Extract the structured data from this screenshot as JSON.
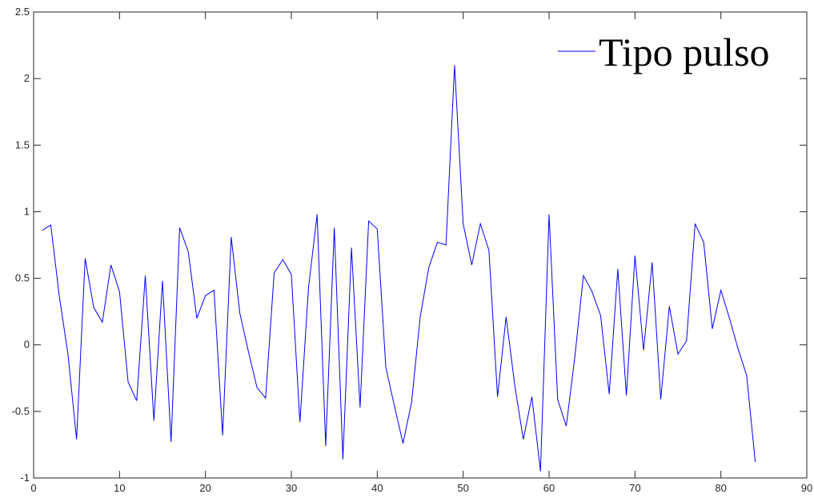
{
  "chart_data": {
    "type": "line",
    "title": "",
    "xlabel": "",
    "ylabel": "",
    "xlim": [
      0,
      90
    ],
    "ylim": [
      -1,
      2.5
    ],
    "xticks": [
      0,
      10,
      20,
      30,
      40,
      50,
      60,
      70,
      80,
      90
    ],
    "yticks": [
      -1,
      -0.5,
      0,
      0.5,
      1,
      1.5,
      2,
      2.5
    ],
    "xtick_labels": [
      "0",
      "10",
      "20",
      "30",
      "40",
      "50",
      "60",
      "70",
      "80",
      "90"
    ],
    "ytick_labels": [
      "-1",
      "-0.5",
      "0",
      "0.5",
      "1",
      "1.5",
      "2",
      "2.5"
    ],
    "grid": false,
    "legend": {
      "entries": [
        "Tipo pulso"
      ],
      "placement": "top-right"
    },
    "series": [
      {
        "name": "Tipo pulso",
        "color": "#0000ff",
        "x": [
          1,
          2,
          3,
          4,
          5,
          6,
          7,
          8,
          9,
          10,
          11,
          12,
          13,
          14,
          15,
          16,
          17,
          18,
          19,
          20,
          21,
          22,
          23,
          24,
          25,
          26,
          27,
          28,
          29,
          30,
          31,
          32,
          33,
          34,
          35,
          36,
          37,
          38,
          39,
          40,
          41,
          42,
          43,
          44,
          45,
          46,
          47,
          48,
          49,
          50,
          51,
          52,
          53,
          54,
          55,
          56,
          57,
          58,
          59,
          60,
          61,
          62,
          63,
          64,
          65,
          66,
          67,
          68,
          69,
          70,
          71,
          72,
          73,
          74,
          75,
          76,
          77,
          78,
          79,
          80,
          81,
          82,
          83,
          84
        ],
        "values": [
          0.86,
          0.9,
          0.36,
          -0.07,
          -0.71,
          0.65,
          0.28,
          0.17,
          0.6,
          0.4,
          -0.28,
          -0.42,
          0.52,
          -0.57,
          0.48,
          -0.73,
          0.88,
          0.7,
          0.2,
          0.37,
          0.41,
          -0.68,
          0.81,
          0.24,
          -0.05,
          -0.32,
          -0.4,
          0.54,
          0.64,
          0.53,
          -0.58,
          0.43,
          0.98,
          -0.76,
          0.88,
          -0.86,
          0.73,
          -0.47,
          0.93,
          0.87,
          -0.17,
          -0.46,
          -0.74,
          -0.43,
          0.21,
          0.58,
          0.77,
          0.75,
          2.1,
          0.91,
          0.6,
          0.91,
          0.71,
          -0.39,
          0.21,
          -0.3,
          -0.71,
          -0.39,
          -0.95,
          0.98,
          -0.41,
          -0.61,
          -0.09,
          0.52,
          0.4,
          0.22,
          -0.37,
          0.57,
          -0.38,
          0.67,
          -0.04,
          0.62,
          -0.41,
          0.29,
          -0.07,
          0.03,
          0.91,
          0.77,
          0.12,
          0.41,
          0.2,
          -0.03,
          -0.23,
          -0.88
        ]
      }
    ]
  }
}
